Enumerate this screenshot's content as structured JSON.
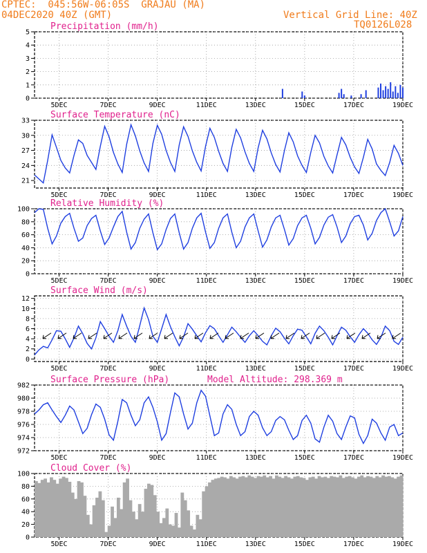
{
  "header": {
    "line1": "CPTEC:  045:56W-06:05S  GRAJAU (MA)",
    "line2": "04DEC2020 40Z (GMT)",
    "right1": "Vertical Grid Line: 40Z",
    "right2": "TQ0126L028"
  },
  "colors": {
    "header": "#f07b1a",
    "title": "#e0208c",
    "line": "#1f3fe0",
    "cloud": "#aaaaaa",
    "grid": "#999999"
  },
  "x_tick_labels": [
    "5DEC",
    "7DEC",
    "9DEC",
    "11DEC",
    "13DEC",
    "15DEC",
    "17DEC",
    "19DEC"
  ],
  "chart_data": [
    {
      "id": "precip",
      "type": "bar",
      "title": "Precipitation (mm/h)",
      "ylim": [
        0,
        5
      ],
      "yticks": [
        0,
        1,
        2,
        3,
        4,
        5
      ],
      "x": [
        14.1,
        14.9,
        15.0,
        16.4,
        16.5,
        16.6,
        16.9,
        17.3,
        17.5,
        18.0,
        18.1,
        18.2,
        18.3,
        18.4,
        18.5,
        18.6,
        18.7,
        18.8,
        18.9,
        19.0
      ],
      "values": [
        0.7,
        0.5,
        0.2,
        0.4,
        0.7,
        0.3,
        0.2,
        0.3,
        0.6,
        0.8,
        1.1,
        0.6,
        0.9,
        0.7,
        1.2,
        0.5,
        0.9,
        0.4,
        1.0,
        0.8
      ]
    },
    {
      "id": "temp",
      "type": "line",
      "title": "Surface Temperature (nC)",
      "ylim": [
        19.5,
        33
      ],
      "yticks": [
        21,
        24,
        27,
        30,
        33
      ],
      "series": [
        {
          "values": [
            22.1,
            21.3,
            20.5,
            25.0,
            30.1,
            27.6,
            25.0,
            23.5,
            22.5,
            26.0,
            29.1,
            28.4,
            26.0,
            24.6,
            23.2,
            27.8,
            31.8,
            29.7,
            26.6,
            24.3,
            22.6,
            28.2,
            32.1,
            29.9,
            26.9,
            24.5,
            22.8,
            28.4,
            32.0,
            30.2,
            27.0,
            24.6,
            22.8,
            28.1,
            31.7,
            29.8,
            26.9,
            24.6,
            22.9,
            27.8,
            31.4,
            29.6,
            26.8,
            24.4,
            22.8,
            27.6,
            31.2,
            29.5,
            26.7,
            24.4,
            22.8,
            27.5,
            31.0,
            29.3,
            26.5,
            24.2,
            22.7,
            27.0,
            30.5,
            28.7,
            25.9,
            24.0,
            22.6,
            26.6,
            30.0,
            28.5,
            25.8,
            23.9,
            22.5,
            26.1,
            29.6,
            28.1,
            25.6,
            23.7,
            22.4,
            25.6,
            29.2,
            27.3,
            24.3,
            23.0,
            22.0,
            24.6,
            28.0,
            26.4,
            24.0
          ]
        }
      ]
    },
    {
      "id": "rh",
      "type": "line",
      "title": "Relative Humidity (%)",
      "ylim": [
        0,
        100
      ],
      "yticks": [
        0,
        20,
        40,
        60,
        80,
        100
      ],
      "series": [
        {
          "values": [
            94,
            100,
            99,
            70,
            46,
            58,
            78,
            88,
            93,
            70,
            50,
            55,
            74,
            85,
            90,
            66,
            45,
            55,
            72,
            88,
            96,
            64,
            38,
            48,
            70,
            84,
            92,
            63,
            37,
            46,
            68,
            85,
            92,
            63,
            38,
            48,
            70,
            86,
            93,
            64,
            39,
            48,
            70,
            86,
            92,
            64,
            40,
            50,
            72,
            86,
            92,
            66,
            41,
            52,
            72,
            86,
            90,
            68,
            44,
            54,
            74,
            86,
            90,
            70,
            46,
            56,
            75,
            87,
            91,
            72,
            48,
            58,
            77,
            88,
            90,
            75,
            52,
            62,
            82,
            94,
            100,
            80,
            58,
            66,
            88
          ]
        }
      ]
    },
    {
      "id": "wind",
      "type": "line",
      "title": "Surface Wind (m/s)",
      "ylim": [
        -0.5,
        12.5
      ],
      "yticks": [
        0,
        2,
        4,
        6,
        8,
        10,
        12
      ],
      "series": [
        {
          "values": [
            0.8,
            1.8,
            2.5,
            2.2,
            3.8,
            5.6,
            5.5,
            4.0,
            2.3,
            4.2,
            6.5,
            5.0,
            3.1,
            2.0,
            4.2,
            7.4,
            6.0,
            4.5,
            3.3,
            5.6,
            8.8,
            6.5,
            4.5,
            3.3,
            6.6,
            10.1,
            7.8,
            4.5,
            3.3,
            6.0,
            8.8,
            6.4,
            4.4,
            2.6,
            4.4,
            7.0,
            5.9,
            4.6,
            3.4,
            5.2,
            6.6,
            6.0,
            4.6,
            3.3,
            4.8,
            6.3,
            5.4,
            4.3,
            3.3,
            4.6,
            5.6,
            4.6,
            3.5,
            2.8,
            4.6,
            6.1,
            5.4,
            4.1,
            3.0,
            4.6,
            5.9,
            5.7,
            4.4,
            3.0,
            5.1,
            6.5,
            5.6,
            4.3,
            2.8,
            4.6,
            6.3,
            5.7,
            4.4,
            3.3,
            4.8,
            6.0,
            5.1,
            3.8,
            2.9,
            4.3,
            6.5,
            5.6,
            3.5,
            2.9,
            4.3
          ]
        }
      ]
    },
    {
      "id": "press",
      "type": "line",
      "title": "Surface Pressure (hPa)",
      "annotation": "Model Altitude: 298.369 m",
      "ylim": [
        972,
        982
      ],
      "yticks": [
        972,
        974,
        976,
        978,
        980,
        982
      ],
      "series": [
        {
          "values": [
            977.6,
            978.2,
            979.0,
            979.3,
            978.2,
            977.2,
            976.3,
            977.4,
            978.8,
            978.2,
            976.4,
            974.6,
            975.4,
            977.5,
            979.1,
            978.6,
            976.8,
            974.4,
            973.6,
            976.5,
            979.8,
            979.3,
            977.4,
            975.8,
            976.7,
            979.3,
            980.2,
            978.6,
            976.4,
            973.6,
            974.6,
            977.8,
            980.8,
            980.2,
            977.6,
            975.3,
            976.2,
            979.3,
            981.2,
            980.3,
            977.3,
            974.3,
            974.7,
            977.6,
            979.0,
            978.3,
            976.0,
            974.3,
            974.9,
            977.2,
            978.0,
            977.4,
            975.5,
            974.3,
            974.9,
            976.6,
            977.2,
            976.7,
            975.1,
            973.7,
            974.3,
            976.6,
            977.4,
            976.2,
            973.8,
            973.3,
            975.6,
            977.4,
            976.5,
            974.6,
            973.7,
            975.6,
            977.3,
            977.0,
            974.5,
            973.1,
            974.3,
            976.8,
            976.2,
            974.7,
            973.6,
            975.6,
            976.0,
            974.3,
            974.7
          ]
        }
      ]
    },
    {
      "id": "cloud",
      "type": "bar",
      "title": "Cloud Cover (%)",
      "ylim": [
        0,
        100
      ],
      "yticks": [
        0,
        20,
        40,
        60,
        80,
        100
      ],
      "values": [
        88,
        85,
        90,
        92,
        86,
        94,
        90,
        84,
        92,
        95,
        93,
        87,
        70,
        60,
        88,
        86,
        65,
        35,
        20,
        50,
        62,
        72,
        58,
        8,
        18,
        48,
        30,
        62,
        44,
        86,
        92,
        58,
        40,
        28,
        52,
        40,
        76,
        84,
        82,
        66,
        40,
        22,
        30,
        45,
        20,
        18,
        38,
        15,
        70,
        58,
        42,
        18,
        12,
        35,
        28,
        72,
        80,
        86,
        90,
        92,
        93,
        95,
        94,
        92,
        96,
        94,
        92,
        95,
        96,
        94,
        97,
        95,
        93,
        96,
        95,
        97,
        94,
        96,
        92,
        97,
        95,
        93,
        96,
        94,
        92,
        95,
        96,
        94,
        93,
        90,
        94,
        95,
        92,
        96,
        94,
        95,
        93,
        96,
        95,
        94,
        97,
        93,
        95,
        96,
        94,
        92,
        95,
        97,
        94,
        96,
        95,
        93,
        96,
        94,
        97,
        95,
        96,
        94,
        92,
        95,
        97
      ]
    }
  ]
}
